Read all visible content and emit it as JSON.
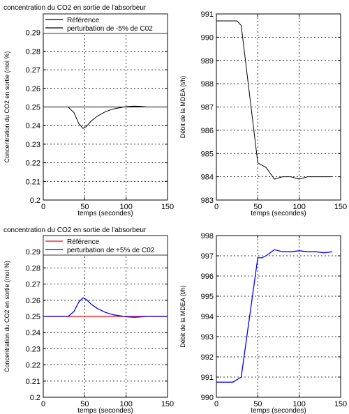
{
  "chart_data": [
    {
      "type": "line",
      "title": "concentration du CO2 en sortie de l'absorbeur",
      "xlabel": "temps (secondes)",
      "ylabel": "Concentration du CO2 en sortie (mol %)",
      "xlim": [
        0,
        150
      ],
      "ylim": [
        0.2,
        0.3
      ],
      "xticks": [
        "0",
        "50",
        "100",
        "150"
      ],
      "yticks": [
        "0.2",
        "0.21",
        "0.22",
        "0.23",
        "0.24",
        "0.25",
        "0.26",
        "0.27",
        "0.28",
        "0.29"
      ],
      "grid": true,
      "legend_position": "top",
      "colors": {
        "Référence": "#000000",
        "perturbation de -5% de C02": "#000000"
      },
      "series": [
        {
          "name": "Référence",
          "x": [
            0,
            150
          ],
          "y": [
            0.25,
            0.25
          ]
        },
        {
          "name": "perturbation de -5% de C02",
          "x": [
            0,
            30,
            37,
            43,
            48,
            52,
            58,
            65,
            75,
            85,
            95,
            100,
            110,
            118,
            125,
            150
          ],
          "y": [
            0.25,
            0.25,
            0.247,
            0.241,
            0.2385,
            0.2395,
            0.2425,
            0.245,
            0.2475,
            0.249,
            0.2498,
            0.2502,
            0.2505,
            0.2503,
            0.25,
            0.25
          ]
        }
      ]
    },
    {
      "type": "line",
      "title": "",
      "xlabel": "temps (secondes)",
      "ylabel": "Débit de la MDEA (t/h)",
      "xlim": [
        0,
        150
      ],
      "ylim": [
        983,
        991
      ],
      "xticks": [
        "0",
        "50",
        "100",
        "150"
      ],
      "yticks": [
        "983",
        "984",
        "985",
        "986",
        "987",
        "988",
        "989",
        "990",
        "991"
      ],
      "grid": true,
      "colors": {
        "series": "#000000"
      },
      "series": [
        {
          "x": [
            0,
            10,
            20,
            25,
            30,
            50,
            55,
            60,
            70,
            80,
            90,
            100,
            110,
            120,
            130,
            140
          ],
          "y": [
            990.7,
            990.7,
            990.7,
            990.7,
            990.5,
            984.6,
            984.5,
            984.4,
            983.9,
            984.0,
            984.0,
            983.9,
            984.0,
            984.0,
            984.0,
            984.0
          ]
        }
      ]
    },
    {
      "type": "line",
      "title": "concentration du CO2 en sortie de l'absorbeur",
      "xlabel": "temps (secondes)",
      "ylabel": "Concentration du CO2 en sortie (mol %)",
      "xlim": [
        0,
        150
      ],
      "ylim": [
        0.2,
        0.3
      ],
      "xticks": [
        "0",
        "50",
        "100",
        "150"
      ],
      "yticks": [
        "0.2",
        "0.21",
        "0.22",
        "0.23",
        "0.24",
        "0.25",
        "0.26",
        "0.27",
        "0.28",
        "0.29"
      ],
      "grid": true,
      "legend_position": "top",
      "colors": {
        "Référence": "#ff0000",
        "perturbation de +5% de C02": "#0000ff"
      },
      "series": [
        {
          "name": "Référence",
          "x": [
            0,
            150
          ],
          "y": [
            0.25,
            0.25
          ]
        },
        {
          "name": "perturbation de +5% de C02",
          "x": [
            0,
            30,
            37,
            43,
            48,
            52,
            58,
            65,
            75,
            85,
            95,
            100,
            110,
            118,
            125,
            150
          ],
          "y": [
            0.25,
            0.25,
            0.253,
            0.259,
            0.2615,
            0.2605,
            0.2575,
            0.255,
            0.2525,
            0.251,
            0.2502,
            0.2498,
            0.2495,
            0.2497,
            0.25,
            0.25
          ]
        }
      ]
    },
    {
      "type": "line",
      "title": "",
      "xlabel": "temps (secondes)",
      "ylabel": "Débit de la MDEA (t/h)",
      "xlim": [
        0,
        150
      ],
      "ylim": [
        990,
        998
      ],
      "xticks": [
        "0",
        "50",
        "100",
        "150"
      ],
      "yticks": [
        "990",
        "991",
        "992",
        "993",
        "994",
        "995",
        "996",
        "997",
        "998"
      ],
      "grid": true,
      "colors": {
        "series": "#0000ff"
      },
      "series": [
        {
          "x": [
            0,
            10,
            20,
            30,
            50,
            55,
            60,
            70,
            80,
            90,
            100,
            110,
            120,
            130,
            140
          ],
          "y": [
            990.75,
            990.75,
            990.75,
            991.0,
            996.9,
            996.9,
            997.0,
            997.3,
            997.2,
            997.2,
            997.25,
            997.2,
            997.2,
            997.15,
            997.2
          ]
        }
      ]
    }
  ]
}
